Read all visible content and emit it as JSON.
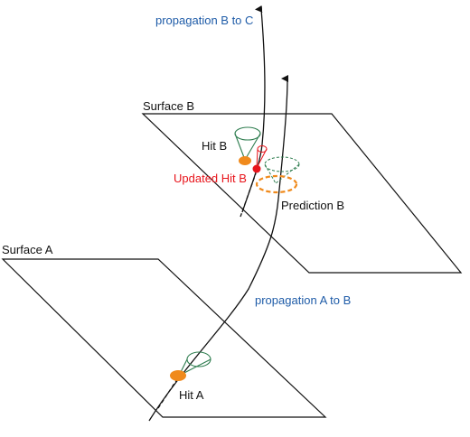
{
  "labels": {
    "propagation_b_to_c": "propagation B to C",
    "surface_b": "Surface B",
    "hit_b": "Hit B",
    "updated_hit_b": "Updated Hit B",
    "prediction_b": "Prediction B",
    "surface_a": "Surface A",
    "propagation_a_to_b": "propagation A to B",
    "hit_a": "Hit A"
  },
  "colors": {
    "propagation_text": "#1f5ca8",
    "updated_hit": "#e8141b",
    "hit_marker": "#f08a1c",
    "prediction_ellipse": "#f08a1c",
    "cone": "#2e7d4f",
    "track": "#111111"
  }
}
